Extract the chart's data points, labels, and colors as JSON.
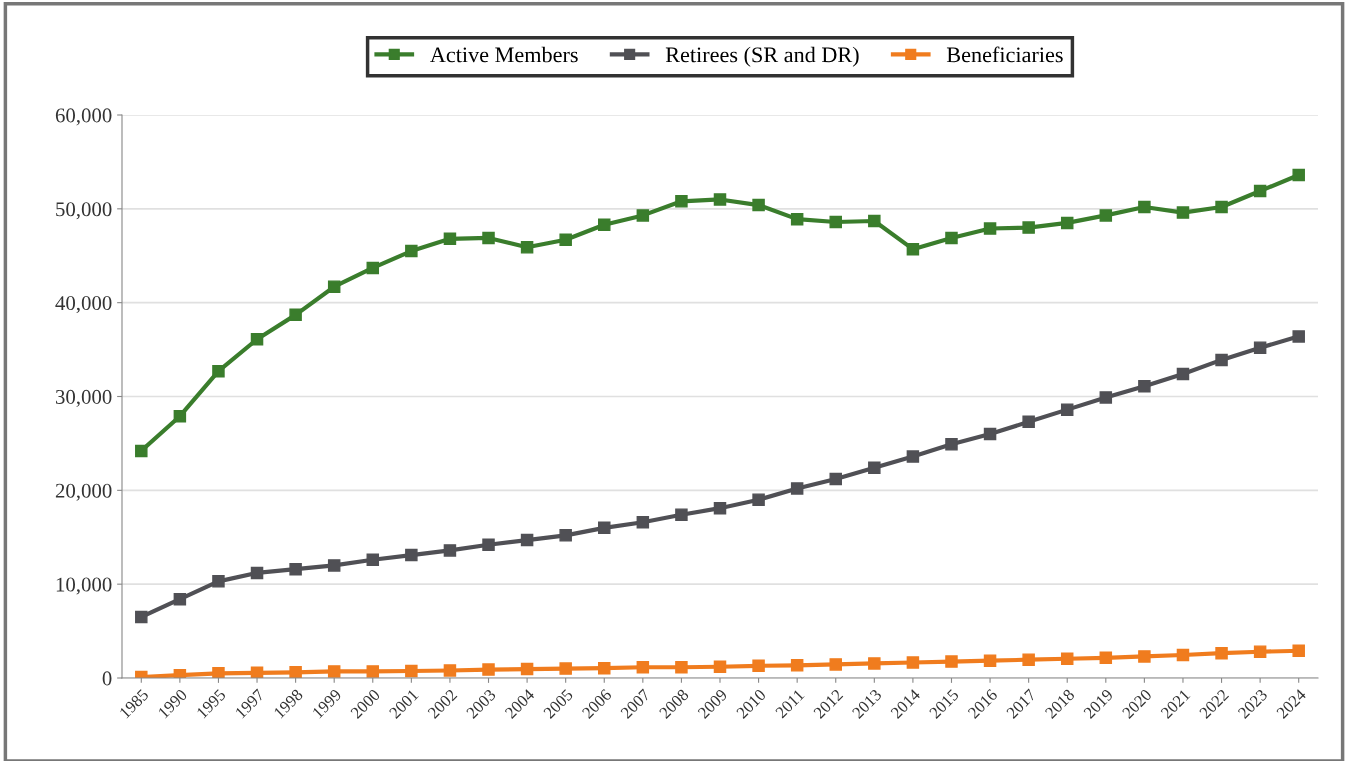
{
  "chart_data": {
    "type": "line",
    "categories": [
      "1985",
      "1990",
      "1995",
      "1997",
      "1998",
      "1999",
      "2000",
      "2001",
      "2002",
      "2003",
      "2004",
      "2005",
      "2006",
      "2007",
      "2008",
      "2009",
      "2010",
      "2011",
      "2012",
      "2013",
      "2014",
      "2015",
      "2016",
      "2017",
      "2018",
      "2019",
      "2020",
      "2021",
      "2022",
      "2023",
      "2024"
    ],
    "series": [
      {
        "name": "Active Members",
        "color": "#3a7d2c",
        "values": [
          24200,
          27900,
          32700,
          36100,
          38700,
          41700,
          43700,
          45500,
          46800,
          46900,
          45900,
          46700,
          48300,
          49300,
          50800,
          51000,
          50400,
          48900,
          48600,
          48700,
          45700,
          46900,
          47900,
          48000,
          48500,
          49300,
          50200,
          49600,
          50200,
          51900,
          53600
        ]
      },
      {
        "name": "Retirees (SR and DR)",
        "color": "#505055",
        "values": [
          6500,
          8400,
          10300,
          11200,
          11600,
          12000,
          12600,
          13100,
          13600,
          14200,
          14700,
          15200,
          16000,
          16600,
          17400,
          18100,
          19000,
          20200,
          21200,
          22400,
          23600,
          24900,
          26000,
          27300,
          28600,
          29900,
          31100,
          32400,
          33900,
          35200,
          36400
        ]
      },
      {
        "name": "Beneficiaries",
        "color": "#f07c1e",
        "values": [
          100,
          300,
          500,
          550,
          600,
          700,
          700,
          750,
          800,
          900,
          950,
          1000,
          1050,
          1150,
          1150,
          1200,
          1300,
          1350,
          1450,
          1550,
          1650,
          1750,
          1850,
          1950,
          2050,
          2150,
          2300,
          2450,
          2650,
          2800,
          2900
        ]
      }
    ],
    "ylim": [
      0,
      60000
    ],
    "yticks": [
      {
        "value": 0,
        "label": "0"
      },
      {
        "value": 10000,
        "label": "10,000"
      },
      {
        "value": 20000,
        "label": "20,000"
      },
      {
        "value": 30000,
        "label": "30,000"
      },
      {
        "value": 40000,
        "label": "40,000"
      },
      {
        "value": 50000,
        "label": "50,000"
      },
      {
        "value": 60000,
        "label": "60,000"
      }
    ],
    "grid": "y",
    "legend": "top",
    "marker": "square",
    "line_style": "solid"
  }
}
